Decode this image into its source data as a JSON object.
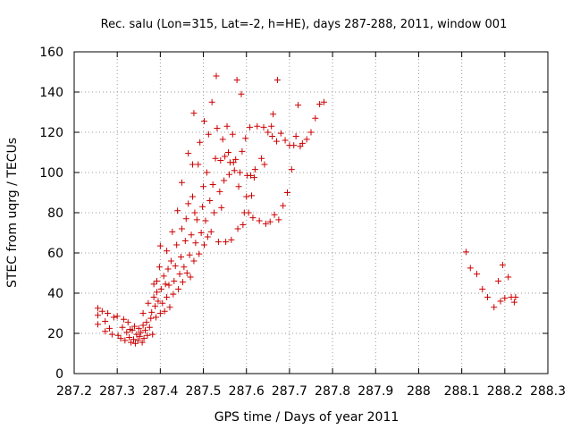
{
  "chart_data": {
    "type": "scatter",
    "title": "Rec. salu (Lon=315, Lat=-2, h=HE), days 287-288, 2011, window 001",
    "xlabel": "GPS time / Days of year 2011",
    "ylabel": "STEC from uqrg / TECUs",
    "xlim": [
      287.2,
      288.3
    ],
    "ylim": [
      0,
      160
    ],
    "xticks": [
      "287.2",
      "287.3",
      "287.4",
      "287.5",
      "287.6",
      "287.7",
      "287.8",
      "287.9",
      "288",
      "288.1",
      "288.2",
      "288.3"
    ],
    "xtick_values": [
      287.2,
      287.3,
      287.4,
      287.5,
      287.6,
      287.7,
      287.8,
      287.9,
      288.0,
      288.1,
      288.2,
      288.3
    ],
    "yticks": [
      "0",
      "20",
      "40",
      "60",
      "80",
      "100",
      "120",
      "140",
      "160"
    ],
    "ytick_values": [
      0,
      20,
      40,
      60,
      80,
      100,
      120,
      140,
      160
    ],
    "grid": true,
    "marker": "+",
    "color": "#cc0000",
    "points": [
      [
        287.255,
        32.5
      ],
      [
        287.255,
        29.0
      ],
      [
        287.255,
        24.5
      ],
      [
        287.265,
        31.0
      ],
      [
        287.272,
        26.0
      ],
      [
        287.272,
        21.0
      ],
      [
        287.278,
        30.0
      ],
      [
        287.282,
        22.5
      ],
      [
        287.288,
        19.5
      ],
      [
        287.292,
        28.0
      ],
      [
        287.3,
        28.5
      ],
      [
        287.302,
        19.0
      ],
      [
        287.308,
        17.5
      ],
      [
        287.312,
        23.0
      ],
      [
        287.315,
        27.0
      ],
      [
        287.318,
        16.5
      ],
      [
        287.322,
        20.5
      ],
      [
        287.325,
        25.5
      ],
      [
        287.328,
        18.0
      ],
      [
        287.33,
        22.0
      ],
      [
        287.332,
        15.5
      ],
      [
        287.335,
        21.5
      ],
      [
        287.338,
        17.0
      ],
      [
        287.34,
        23.5
      ],
      [
        287.342,
        15.0
      ],
      [
        287.345,
        19.5
      ],
      [
        287.348,
        16.5
      ],
      [
        287.35,
        22.5
      ],
      [
        287.352,
        18.5
      ],
      [
        287.355,
        20.5
      ],
      [
        287.358,
        15.5
      ],
      [
        287.36,
        24.0
      ],
      [
        287.36,
        30.0
      ],
      [
        287.362,
        17.5
      ],
      [
        287.365,
        21.5
      ],
      [
        287.368,
        25.5
      ],
      [
        287.37,
        19.0
      ],
      [
        287.372,
        35.0
      ],
      [
        287.375,
        23.0
      ],
      [
        287.378,
        27.5
      ],
      [
        287.38,
        30.5
      ],
      [
        287.382,
        19.5
      ],
      [
        287.385,
        38.0
      ],
      [
        287.385,
        44.5
      ],
      [
        287.388,
        33.5
      ],
      [
        287.39,
        28.0
      ],
      [
        287.392,
        46.0
      ],
      [
        287.392,
        40.5
      ],
      [
        287.395,
        36.0
      ],
      [
        287.398,
        53.0
      ],
      [
        287.4,
        30.0
      ],
      [
        287.4,
        63.5
      ],
      [
        287.402,
        42.0
      ],
      [
        287.405,
        35.0
      ],
      [
        287.408,
        48.5
      ],
      [
        287.41,
        31.0
      ],
      [
        287.412,
        44.5
      ],
      [
        287.415,
        38.0
      ],
      [
        287.415,
        61.0
      ],
      [
        287.418,
        52.0
      ],
      [
        287.42,
        44.0
      ],
      [
        287.422,
        33.0
      ],
      [
        287.425,
        56.0
      ],
      [
        287.428,
        70.5
      ],
      [
        287.43,
        39.5
      ],
      [
        287.432,
        46.0
      ],
      [
        287.435,
        53.5
      ],
      [
        287.438,
        64.0
      ],
      [
        287.44,
        81.0
      ],
      [
        287.442,
        42.0
      ],
      [
        287.445,
        49.5
      ],
      [
        287.448,
        58.0
      ],
      [
        287.45,
        72.0
      ],
      [
        287.45,
        95.0
      ],
      [
        287.452,
        45.5
      ],
      [
        287.455,
        53.0
      ],
      [
        287.458,
        66.0
      ],
      [
        287.46,
        77.0
      ],
      [
        287.462,
        50.0
      ],
      [
        287.465,
        84.5
      ],
      [
        287.465,
        109.5
      ],
      [
        287.468,
        59.0
      ],
      [
        287.47,
        48.0
      ],
      [
        287.472,
        69.0
      ],
      [
        287.475,
        88.0
      ],
      [
        287.475,
        104.0
      ],
      [
        287.478,
        56.0
      ],
      [
        287.478,
        129.5
      ],
      [
        287.48,
        80.0
      ],
      [
        287.482,
        65.0
      ],
      [
        287.485,
        76.5
      ],
      [
        287.488,
        104.0
      ],
      [
        287.49,
        59.5
      ],
      [
        287.492,
        115.0
      ],
      [
        287.495,
        70.0
      ],
      [
        287.498,
        83.0
      ],
      [
        287.5,
        93.0
      ],
      [
        287.502,
        64.0
      ],
      [
        287.502,
        125.5
      ],
      [
        287.505,
        76.0
      ],
      [
        287.508,
        100.0
      ],
      [
        287.51,
        68.0
      ],
      [
        287.512,
        119.0
      ],
      [
        287.515,
        86.0
      ],
      [
        287.518,
        70.5
      ],
      [
        287.52,
        135.0
      ],
      [
        287.522,
        94.0
      ],
      [
        287.525,
        80.0
      ],
      [
        287.528,
        107.0
      ],
      [
        287.53,
        148.0
      ],
      [
        287.532,
        122.0
      ],
      [
        287.535,
        65.5
      ],
      [
        287.538,
        90.5
      ],
      [
        287.54,
        106.0
      ],
      [
        287.542,
        82.5
      ],
      [
        287.545,
        116.5
      ],
      [
        287.548,
        96.0
      ],
      [
        287.55,
        108.0
      ],
      [
        287.552,
        65.5
      ],
      [
        287.555,
        123.0
      ],
      [
        287.558,
        110.0
      ],
      [
        287.56,
        99.0
      ],
      [
        287.562,
        105.0
      ],
      [
        287.565,
        66.5
      ],
      [
        287.568,
        119.0
      ],
      [
        287.57,
        105.0
      ],
      [
        287.572,
        101.0
      ],
      [
        287.575,
        106.5
      ],
      [
        287.578,
        146.0
      ],
      [
        287.58,
        72.0
      ],
      [
        287.582,
        93.0
      ],
      [
        287.585,
        100.0
      ],
      [
        287.588,
        139.0
      ],
      [
        287.59,
        110.5
      ],
      [
        287.592,
        74.0
      ],
      [
        287.595,
        80.0
      ],
      [
        287.598,
        117.0
      ],
      [
        287.6,
        88.0
      ],
      [
        287.602,
        98.5
      ],
      [
        287.605,
        80.0
      ],
      [
        287.608,
        122.5
      ],
      [
        287.61,
        98.5
      ],
      [
        287.612,
        88.5
      ],
      [
        287.615,
        77.5
      ],
      [
        287.618,
        97.5
      ],
      [
        287.62,
        101.5
      ],
      [
        287.625,
        123.0
      ],
      [
        287.63,
        76.0
      ],
      [
        287.635,
        107.0
      ],
      [
        287.64,
        122.5
      ],
      [
        287.642,
        104.0
      ],
      [
        287.645,
        74.5
      ],
      [
        287.65,
        120.0
      ],
      [
        287.655,
        75.5
      ],
      [
        287.658,
        123.0
      ],
      [
        287.66,
        118.0
      ],
      [
        287.662,
        129.0
      ],
      [
        287.665,
        79.0
      ],
      [
        287.67,
        115.5
      ],
      [
        287.672,
        146.0
      ],
      [
        287.675,
        76.5
      ],
      [
        287.68,
        119.5
      ],
      [
        287.685,
        83.5
      ],
      [
        287.69,
        116.0
      ],
      [
        287.695,
        90.0
      ],
      [
        287.7,
        113.5
      ],
      [
        287.705,
        101.5
      ],
      [
        287.71,
        113.5
      ],
      [
        287.715,
        118.0
      ],
      [
        287.72,
        133.5
      ],
      [
        287.725,
        113.0
      ],
      [
        287.73,
        114.5
      ],
      [
        287.74,
        116.5
      ],
      [
        287.75,
        120.0
      ],
      [
        287.76,
        127.0
      ],
      [
        287.77,
        134.0
      ],
      [
        287.78,
        135.0
      ],
      [
        288.11,
        60.5
      ],
      [
        288.12,
        52.5
      ],
      [
        288.135,
        49.5
      ],
      [
        288.148,
        42.0
      ],
      [
        288.16,
        38.0
      ],
      [
        288.175,
        33.0
      ],
      [
        288.185,
        46.0
      ],
      [
        288.19,
        36.0
      ],
      [
        288.195,
        54.0
      ],
      [
        288.2,
        37.5
      ],
      [
        288.208,
        48.0
      ],
      [
        288.215,
        38.0
      ],
      [
        288.222,
        35.5
      ],
      [
        288.225,
        38.0
      ]
    ]
  }
}
